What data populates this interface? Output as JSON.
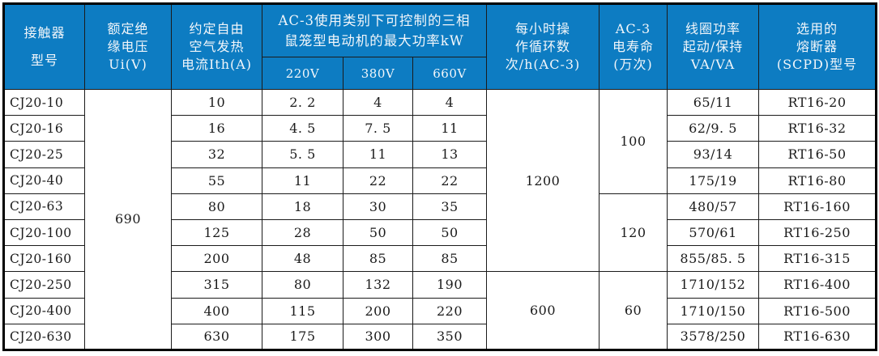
{
  "colors": {
    "header_bg": "#0d7cc2",
    "header_text": "#f2f6fa",
    "grid_border": "#1b1b1b",
    "cell_text": "#1b1b1b",
    "page_bg": "#ffffff"
  },
  "chart_data": {
    "type": "table",
    "header": {
      "contactor_model": "接触器\n型号",
      "rated_insulation_voltage": "额定绝\n缘电压\nUi(V)",
      "thermal_current": "约定自由\n空气发热\n电流Ith(A)",
      "ac3_max_power_group": "AC-3使用类别下可控制的三相\n鼠笼型电动机的最大功率kW",
      "ac3_voltages": [
        "220V",
        "380V",
        "660V"
      ],
      "cycles_per_hour": "每小时操\n作循环数\n次/h(AC-3)",
      "ac3_electrical_life": "AC-3\n电寿命\n(万次)",
      "coil_power": "线圈功率\n起动/保持\nVA/VA",
      "fuse_model": "选用的\n熔断器\n(SCPD)型号"
    },
    "rows": [
      {
        "model": "CJ20-10",
        "ith": "10",
        "kw220": "2. 2",
        "kw380": "4",
        "kw660": "4",
        "coil": "65/11",
        "fuse": "RT16-20"
      },
      {
        "model": "CJ20-16",
        "ith": "16",
        "kw220": "4. 5",
        "kw380": "7. 5",
        "kw660": "11",
        "coil": "62/9. 5",
        "fuse": "RT16-32"
      },
      {
        "model": "CJ20-25",
        "ith": "32",
        "kw220": "5. 5",
        "kw380": "11",
        "kw660": "13",
        "coil": "93/14",
        "fuse": "RT16-50"
      },
      {
        "model": "CJ20-40",
        "ith": "55",
        "kw220": "11",
        "kw380": "22",
        "kw660": "22",
        "coil": "175/19",
        "fuse": "RT16-80"
      },
      {
        "model": "CJ20-63",
        "ith": "80",
        "kw220": "18",
        "kw380": "30",
        "kw660": "35",
        "coil": "480/57",
        "fuse": "RT16-160"
      },
      {
        "model": "CJ20-100",
        "ith": "125",
        "kw220": "28",
        "kw380": "50",
        "kw660": "50",
        "coil": "570/61",
        "fuse": "RT16-250"
      },
      {
        "model": "CJ20-160",
        "ith": "200",
        "kw220": "48",
        "kw380": "85",
        "kw660": "85",
        "coil": "855/85. 5",
        "fuse": "RT16-315"
      },
      {
        "model": "CJ20-250",
        "ith": "315",
        "kw220": "80",
        "kw380": "132",
        "kw660": "190",
        "coil": "1710/152",
        "fuse": "RT16-400"
      },
      {
        "model": "CJ20-400",
        "ith": "400",
        "kw220": "115",
        "kw380": "200",
        "kw660": "220",
        "coil": "1710/150",
        "fuse": "RT16-500"
      },
      {
        "model": "CJ20-630",
        "ith": "630",
        "kw220": "175",
        "kw380": "300",
        "kw660": "350",
        "coil": "3578/250",
        "fuse": "RT16-630"
      }
    ],
    "merged_cells": {
      "ui": {
        "value": "690",
        "start": 0,
        "span": 10
      },
      "cycles": [
        {
          "value": "1200",
          "start": 0,
          "span": 7
        },
        {
          "value": "600",
          "start": 7,
          "span": 3
        }
      ],
      "life": [
        {
          "value": "100",
          "start": 0,
          "span": 4
        },
        {
          "value": "120",
          "start": 4,
          "span": 3
        },
        {
          "value": "60",
          "start": 7,
          "span": 3
        }
      ]
    }
  }
}
